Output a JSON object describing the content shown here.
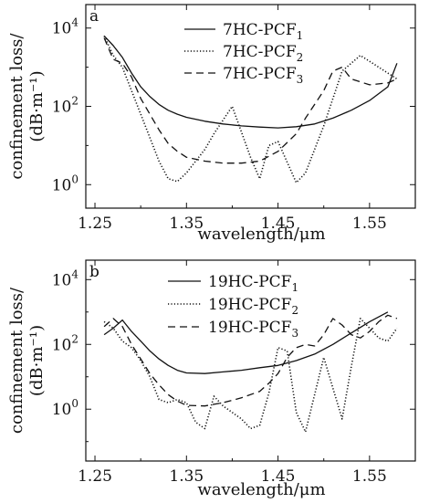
{
  "chart_data": [
    {
      "type": "line",
      "panel_label": "a",
      "xlabel": "wavelength/μm",
      "ylabel_line1": "confinement loss/",
      "ylabel_line2": "(dB·m⁻¹)",
      "xlim": [
        1.24,
        1.6
      ],
      "ylim_log10": [
        -0.6,
        4.6
      ],
      "yscale": "log",
      "xticks": [
        1.25,
        1.35,
        1.45,
        1.55
      ],
      "xtick_labels": [
        "1.25",
        "1.35",
        "1.45",
        "1.55"
      ],
      "yticks_log10": [
        0,
        2,
        4
      ],
      "ytick_labels": [
        {
          "base": "10",
          "exp": "0"
        },
        {
          "base": "10",
          "exp": "2"
        },
        {
          "base": "10",
          "exp": "4"
        }
      ],
      "legend_position": "top-right",
      "series": [
        {
          "name": {
            "base": "7HC-PCF",
            "sub": "1"
          },
          "style": "solid",
          "x": [
            1.26,
            1.27,
            1.28,
            1.29,
            1.3,
            1.31,
            1.32,
            1.33,
            1.34,
            1.35,
            1.37,
            1.39,
            1.41,
            1.43,
            1.45,
            1.47,
            1.49,
            1.51,
            1.53,
            1.55,
            1.57,
            1.58
          ],
          "y_log10": [
            3.8,
            3.55,
            3.25,
            2.85,
            2.5,
            2.25,
            2.05,
            1.9,
            1.8,
            1.72,
            1.62,
            1.55,
            1.5,
            1.47,
            1.45,
            1.48,
            1.55,
            1.7,
            1.9,
            2.15,
            2.5,
            3.1
          ]
        },
        {
          "name": {
            "base": "7HC-PCF",
            "sub": "2"
          },
          "style": "dotted",
          "x": [
            1.26,
            1.27,
            1.28,
            1.29,
            1.3,
            1.31,
            1.32,
            1.33,
            1.34,
            1.35,
            1.37,
            1.38,
            1.4,
            1.42,
            1.43,
            1.44,
            1.45,
            1.47,
            1.48,
            1.5,
            1.52,
            1.54,
            1.56,
            1.58
          ],
          "y_log10": [
            3.8,
            3.3,
            3.0,
            2.4,
            1.8,
            1.2,
            0.6,
            0.15,
            0.08,
            0.3,
            0.9,
            1.3,
            2.0,
            0.7,
            0.15,
            1.0,
            1.1,
            0.05,
            0.3,
            1.5,
            2.9,
            3.3,
            3.0,
            2.7
          ]
        },
        {
          "name": {
            "base": "7HC-PCF",
            "sub": "3"
          },
          "style": "dashed",
          "x": [
            1.26,
            1.27,
            1.28,
            1.29,
            1.3,
            1.31,
            1.32,
            1.33,
            1.34,
            1.35,
            1.37,
            1.39,
            1.41,
            1.43,
            1.45,
            1.47,
            1.48,
            1.5,
            1.51,
            1.52,
            1.53,
            1.55,
            1.57,
            1.58
          ],
          "y_log10": [
            3.75,
            3.2,
            3.1,
            2.75,
            2.2,
            1.8,
            1.4,
            1.05,
            0.85,
            0.7,
            0.6,
            0.55,
            0.55,
            0.6,
            0.85,
            1.3,
            1.7,
            2.4,
            2.9,
            3.0,
            2.7,
            2.55,
            2.6,
            2.7
          ]
        }
      ]
    },
    {
      "type": "line",
      "panel_label": "b",
      "xlabel": "wavelength/μm",
      "ylabel_line1": "confinement loss/",
      "ylabel_line2": "(dB·m⁻¹)",
      "xlim": [
        1.24,
        1.6
      ],
      "ylim_log10": [
        -1.6,
        4.6
      ],
      "yscale": "log",
      "xticks": [
        1.25,
        1.35,
        1.45,
        1.55
      ],
      "xtick_labels": [
        "1.25",
        "1.35",
        "1.45",
        "1.55"
      ],
      "yticks_log10": [
        0,
        2,
        4
      ],
      "ytick_labels": [
        {
          "base": "10",
          "exp": "0"
        },
        {
          "base": "10",
          "exp": "2"
        },
        {
          "base": "10",
          "exp": "4"
        }
      ],
      "legend_position": "top-right",
      "series": [
        {
          "name": {
            "base": "19HC-PCF",
            "sub": "1"
          },
          "style": "solid",
          "x": [
            1.26,
            1.27,
            1.28,
            1.29,
            1.3,
            1.31,
            1.32,
            1.33,
            1.34,
            1.35,
            1.37,
            1.39,
            1.41,
            1.43,
            1.45,
            1.47,
            1.49,
            1.51,
            1.53,
            1.55,
            1.57
          ],
          "y_log10": [
            2.3,
            2.5,
            2.75,
            2.4,
            2.1,
            1.8,
            1.55,
            1.35,
            1.2,
            1.12,
            1.1,
            1.15,
            1.2,
            1.28,
            1.35,
            1.5,
            1.7,
            2.0,
            2.35,
            2.7,
            3.0
          ]
        },
        {
          "name": {
            "base": "19HC-PCF",
            "sub": "2"
          },
          "style": "dotted",
          "x": [
            1.26,
            1.27,
            1.28,
            1.29,
            1.3,
            1.31,
            1.32,
            1.33,
            1.34,
            1.35,
            1.36,
            1.37,
            1.38,
            1.39,
            1.41,
            1.42,
            1.43,
            1.44,
            1.45,
            1.46,
            1.47,
            1.48,
            1.5,
            1.52,
            1.53,
            1.54,
            1.55,
            1.56,
            1.57,
            1.58
          ],
          "y_log10": [
            2.7,
            2.5,
            2.1,
            1.9,
            1.5,
            1.0,
            0.3,
            0.2,
            0.3,
            0.2,
            -0.4,
            -0.6,
            0.4,
            0.1,
            -0.3,
            -0.6,
            -0.5,
            0.5,
            1.9,
            1.8,
            -0.1,
            -0.7,
            1.6,
            -0.3,
            1.3,
            2.8,
            2.5,
            2.2,
            2.1,
            2.5
          ]
        },
        {
          "name": {
            "base": "19HC-PCF",
            "sub": "3"
          },
          "style": "dashed",
          "x": [
            1.26,
            1.27,
            1.28,
            1.29,
            1.3,
            1.31,
            1.32,
            1.33,
            1.34,
            1.35,
            1.37,
            1.39,
            1.41,
            1.43,
            1.44,
            1.45,
            1.46,
            1.47,
            1.48,
            1.49,
            1.5,
            1.51,
            1.52,
            1.53,
            1.54,
            1.55,
            1.56,
            1.57,
            1.58
          ],
          "y_log10": [
            2.55,
            2.8,
            2.55,
            2.0,
            1.55,
            1.1,
            0.75,
            0.45,
            0.25,
            0.12,
            0.1,
            0.2,
            0.35,
            0.55,
            0.8,
            1.1,
            1.6,
            1.9,
            2.0,
            1.95,
            2.3,
            2.8,
            2.6,
            2.3,
            2.2,
            2.4,
            2.7,
            2.9,
            2.8
          ]
        }
      ]
    }
  ]
}
